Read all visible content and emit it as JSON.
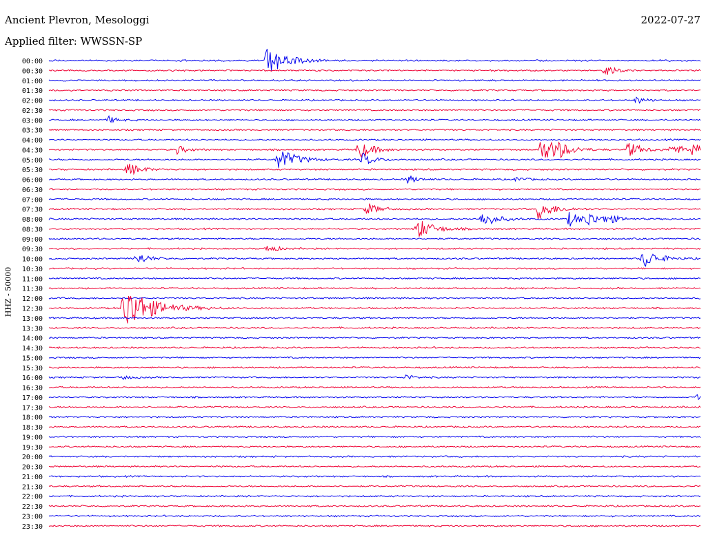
{
  "header": {
    "station": "Ancient Plevron, Mesologgi",
    "filter": "Applied filter: WWSSN-SP",
    "date": "2022-07-27"
  },
  "chart_data": {
    "type": "line",
    "title": "Ancient Plevron, Mesologgi",
    "subtitle": "Applied filter: WWSSN-SP",
    "ylabel": "HHZ - 50000",
    "xlabel": "",
    "row_labels": [
      "00:00",
      "00:30",
      "01:00",
      "01:30",
      "02:00",
      "02:30",
      "03:00",
      "03:30",
      "04:00",
      "04:30",
      "05:00",
      "05:30",
      "06:00",
      "06:30",
      "07:00",
      "07:30",
      "08:00",
      "08:30",
      "09:00",
      "09:30",
      "10:00",
      "10:30",
      "11:00",
      "11:30",
      "12:00",
      "12:30",
      "13:00",
      "13:30",
      "14:00",
      "14:30",
      "15:00",
      "15:30",
      "16:00",
      "16:30",
      "17:00",
      "17:30",
      "18:00",
      "18:30",
      "19:00",
      "19:30",
      "20:00",
      "20:30",
      "21:00",
      "21:30",
      "22:00",
      "22:30",
      "23:00",
      "23:30"
    ],
    "row_colors": [
      "#0000ee",
      "#ee0033"
    ],
    "row_duration_min": 30,
    "events": [
      {
        "row": 0,
        "minute": 10.0,
        "amp": 1.0
      },
      {
        "row": 1,
        "minute": 25.5,
        "amp": 0.4
      },
      {
        "row": 4,
        "minute": 27.0,
        "amp": 0.25
      },
      {
        "row": 6,
        "minute": 2.7,
        "amp": 0.25
      },
      {
        "row": 9,
        "minute": 5.9,
        "amp": 0.3
      },
      {
        "row": 9,
        "minute": 14.2,
        "amp": 0.65
      },
      {
        "row": 9,
        "minute": 22.6,
        "amp": 0.8
      },
      {
        "row": 9,
        "minute": 23.2,
        "amp": 0.55
      },
      {
        "row": 9,
        "minute": 26.6,
        "amp": 0.55
      },
      {
        "row": 9,
        "minute": 28.6,
        "amp": 0.45
      },
      {
        "row": 9,
        "minute": 29.6,
        "amp": 0.45
      },
      {
        "row": 10,
        "minute": 10.5,
        "amp": 0.85
      },
      {
        "row": 10,
        "minute": 14.4,
        "amp": 0.45
      },
      {
        "row": 11,
        "minute": 3.6,
        "amp": 0.5
      },
      {
        "row": 12,
        "minute": 16.5,
        "amp": 0.3
      },
      {
        "row": 12,
        "minute": 21.5,
        "amp": 0.2
      },
      {
        "row": 15,
        "minute": 14.6,
        "amp": 0.45
      },
      {
        "row": 15,
        "minute": 22.5,
        "amp": 0.7
      },
      {
        "row": 16,
        "minute": 19.9,
        "amp": 0.6
      },
      {
        "row": 16,
        "minute": 23.9,
        "amp": 0.5
      },
      {
        "row": 16,
        "minute": 24.7,
        "amp": 0.5
      },
      {
        "row": 16,
        "minute": 25.6,
        "amp": 0.35
      },
      {
        "row": 17,
        "minute": 16.9,
        "amp": 0.75
      },
      {
        "row": 19,
        "minute": 10.0,
        "amp": 0.3
      },
      {
        "row": 20,
        "minute": 4.0,
        "amp": 0.45
      },
      {
        "row": 20,
        "minute": 27.3,
        "amp": 0.7
      },
      {
        "row": 25,
        "minute": 3.4,
        "amp": 1.6
      },
      {
        "row": 32,
        "minute": 3.3,
        "amp": 0.2
      },
      {
        "row": 32,
        "minute": 16.4,
        "amp": 0.2
      },
      {
        "row": 34,
        "minute": 29.8,
        "amp": 0.25
      }
    ]
  }
}
